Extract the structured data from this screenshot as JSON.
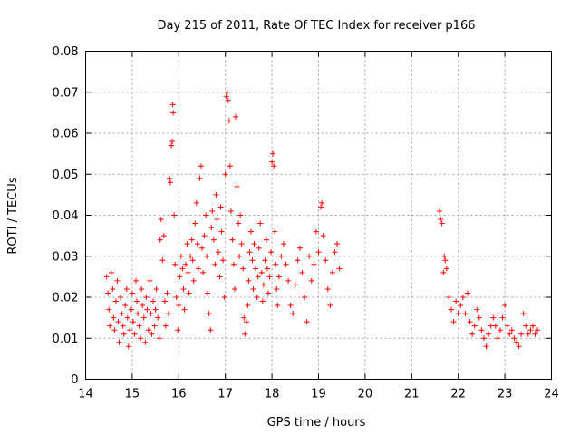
{
  "chart_data": {
    "type": "scatter",
    "title": "Day 215 of 2011, Rate Of TEC Index for receiver p166",
    "xlabel": "GPS time / hours",
    "ylabel": "ROTI / TECUs",
    "xlim": [
      14,
      24
    ],
    "ylim": [
      0,
      0.08
    ],
    "x_ticks": [
      "14",
      "15",
      "16",
      "17",
      "18",
      "19",
      "20",
      "21",
      "22",
      "23",
      "24"
    ],
    "y_ticks": [
      "0",
      "0.01",
      "0.02",
      "0.03",
      "0.04",
      "0.05",
      "0.06",
      "0.07",
      "0.08"
    ],
    "grid": true,
    "marker": "plus",
    "color": "#ff0000",
    "series": [
      {
        "points": [
          [
            14.45,
            0.025
          ],
          [
            14.48,
            0.021
          ],
          [
            14.5,
            0.017
          ],
          [
            14.52,
            0.013
          ],
          [
            14.55,
            0.026
          ],
          [
            14.58,
            0.022
          ],
          [
            14.6,
            0.015
          ],
          [
            14.62,
            0.012
          ],
          [
            14.65,
            0.019
          ],
          [
            14.68,
            0.024
          ],
          [
            14.7,
            0.014
          ],
          [
            14.72,
            0.009
          ],
          [
            14.75,
            0.02
          ],
          [
            14.78,
            0.016
          ],
          [
            14.8,
            0.013
          ],
          [
            14.82,
            0.011
          ],
          [
            14.85,
            0.018
          ],
          [
            14.88,
            0.022
          ],
          [
            14.9,
            0.015
          ],
          [
            14.92,
            0.008
          ],
          [
            14.95,
            0.012
          ],
          [
            14.98,
            0.017
          ],
          [
            15.0,
            0.021
          ],
          [
            15.02,
            0.014
          ],
          [
            15.05,
            0.011
          ],
          [
            15.08,
            0.024
          ],
          [
            15.1,
            0.019
          ],
          [
            15.12,
            0.016
          ],
          [
            15.15,
            0.013
          ],
          [
            15.18,
            0.01
          ],
          [
            15.2,
            0.022
          ],
          [
            15.22,
            0.018
          ],
          [
            15.25,
            0.015
          ],
          [
            15.28,
            0.009
          ],
          [
            15.3,
            0.02
          ],
          [
            15.32,
            0.017
          ],
          [
            15.35,
            0.012
          ],
          [
            15.38,
            0.024
          ],
          [
            15.4,
            0.016
          ],
          [
            15.42,
            0.011
          ],
          [
            15.45,
            0.019
          ],
          [
            15.48,
            0.013
          ],
          [
            15.5,
            0.017
          ],
          [
            15.52,
            0.022
          ],
          [
            15.55,
            0.015
          ],
          [
            15.58,
            0.01
          ],
          [
            15.6,
            0.034
          ],
          [
            15.62,
            0.039
          ],
          [
            15.65,
            0.029
          ],
          [
            15.68,
            0.035
          ],
          [
            15.7,
            0.019
          ],
          [
            15.72,
            0.013
          ],
          [
            15.75,
            0.021
          ],
          [
            15.78,
            0.016
          ],
          [
            15.8,
            0.049
          ],
          [
            15.82,
            0.048
          ],
          [
            15.84,
            0.057
          ],
          [
            15.86,
            0.058
          ],
          [
            15.87,
            0.067
          ],
          [
            15.88,
            0.065
          ],
          [
            15.9,
            0.04
          ],
          [
            15.92,
            0.028
          ],
          [
            15.95,
            0.02
          ],
          [
            15.98,
            0.012
          ],
          [
            16.0,
            0.018
          ],
          [
            16.02,
            0.025
          ],
          [
            16.05,
            0.03
          ],
          [
            16.08,
            0.027
          ],
          [
            16.1,
            0.022
          ],
          [
            16.12,
            0.017
          ],
          [
            16.15,
            0.028
          ],
          [
            16.18,
            0.033
          ],
          [
            16.2,
            0.026
          ],
          [
            16.22,
            0.021
          ],
          [
            16.25,
            0.03
          ],
          [
            16.28,
            0.034
          ],
          [
            16.3,
            0.029
          ],
          [
            16.32,
            0.024
          ],
          [
            16.35,
            0.038
          ],
          [
            16.38,
            0.043
          ],
          [
            16.4,
            0.033
          ],
          [
            16.42,
            0.027
          ],
          [
            16.45,
            0.049
          ],
          [
            16.48,
            0.052
          ],
          [
            16.5,
            0.032
          ],
          [
            16.52,
            0.026
          ],
          [
            16.55,
            0.035
          ],
          [
            16.58,
            0.04
          ],
          [
            16.6,
            0.03
          ],
          [
            16.62,
            0.021
          ],
          [
            16.65,
            0.016
          ],
          [
            16.68,
            0.012
          ],
          [
            16.7,
            0.037
          ],
          [
            16.72,
            0.041
          ],
          [
            16.75,
            0.034
          ],
          [
            16.78,
            0.028
          ],
          [
            16.8,
            0.045
          ],
          [
            16.82,
            0.039
          ],
          [
            16.85,
            0.031
          ],
          [
            16.88,
            0.025
          ],
          [
            16.9,
            0.042
          ],
          [
            16.92,
            0.036
          ],
          [
            16.95,
            0.029
          ],
          [
            16.98,
            0.02
          ],
          [
            17.0,
            0.05
          ],
          [
            17.02,
            0.069
          ],
          [
            17.04,
            0.07
          ],
          [
            17.06,
            0.068
          ],
          [
            17.08,
            0.063
          ],
          [
            17.1,
            0.052
          ],
          [
            17.12,
            0.041
          ],
          [
            17.15,
            0.034
          ],
          [
            17.18,
            0.028
          ],
          [
            17.2,
            0.022
          ],
          [
            17.22,
            0.064
          ],
          [
            17.25,
            0.047
          ],
          [
            17.28,
            0.038
          ],
          [
            17.3,
            0.03
          ],
          [
            17.32,
            0.04
          ],
          [
            17.35,
            0.033
          ],
          [
            17.38,
            0.027
          ],
          [
            17.4,
            0.015
          ],
          [
            17.42,
            0.011
          ],
          [
            17.45,
            0.014
          ],
          [
            17.48,
            0.018
          ],
          [
            17.5,
            0.024
          ],
          [
            17.52,
            0.031
          ],
          [
            17.55,
            0.036
          ],
          [
            17.58,
            0.029
          ],
          [
            17.6,
            0.022
          ],
          [
            17.62,
            0.033
          ],
          [
            17.65,
            0.027
          ],
          [
            17.68,
            0.02
          ],
          [
            17.7,
            0.025
          ],
          [
            17.72,
            0.032
          ],
          [
            17.75,
            0.038
          ],
          [
            17.78,
            0.026
          ],
          [
            17.8,
            0.019
          ],
          [
            17.82,
            0.023
          ],
          [
            17.85,
            0.029
          ],
          [
            17.88,
            0.034
          ],
          [
            17.9,
            0.027
          ],
          [
            17.92,
            0.021
          ],
          [
            17.95,
            0.025
          ],
          [
            17.98,
            0.031
          ],
          [
            18.0,
            0.053
          ],
          [
            18.02,
            0.055
          ],
          [
            18.04,
            0.052
          ],
          [
            18.06,
            0.036
          ],
          [
            18.08,
            0.028
          ],
          [
            18.1,
            0.022
          ],
          [
            18.12,
            0.018
          ],
          [
            18.15,
            0.025
          ],
          [
            18.2,
            0.03
          ],
          [
            18.25,
            0.033
          ],
          [
            18.3,
            0.028
          ],
          [
            18.35,
            0.024
          ],
          [
            18.4,
            0.018
          ],
          [
            18.45,
            0.016
          ],
          [
            18.5,
            0.023
          ],
          [
            18.55,
            0.029
          ],
          [
            18.6,
            0.032
          ],
          [
            18.65,
            0.026
          ],
          [
            18.7,
            0.02
          ],
          [
            18.75,
            0.014
          ],
          [
            18.8,
            0.03
          ],
          [
            18.85,
            0.024
          ],
          [
            18.9,
            0.028
          ],
          [
            18.95,
            0.036
          ],
          [
            19.0,
            0.031
          ],
          [
            19.05,
            0.042
          ],
          [
            19.07,
            0.043
          ],
          [
            19.1,
            0.035
          ],
          [
            19.15,
            0.029
          ],
          [
            19.2,
            0.022
          ],
          [
            19.25,
            0.018
          ],
          [
            19.3,
            0.026
          ],
          [
            19.35,
            0.031
          ],
          [
            19.4,
            0.033
          ],
          [
            19.45,
            0.027
          ],
          [
            21.6,
            0.041
          ],
          [
            21.62,
            0.039
          ],
          [
            21.65,
            0.038
          ],
          [
            21.68,
            0.026
          ],
          [
            21.7,
            0.03
          ],
          [
            21.72,
            0.029
          ],
          [
            21.75,
            0.027
          ],
          [
            21.8,
            0.02
          ],
          [
            21.85,
            0.017
          ],
          [
            21.9,
            0.014
          ],
          [
            21.95,
            0.019
          ],
          [
            22.0,
            0.016
          ],
          [
            22.05,
            0.018
          ],
          [
            22.1,
            0.02
          ],
          [
            22.15,
            0.016
          ],
          [
            22.2,
            0.021
          ],
          [
            22.25,
            0.014
          ],
          [
            22.3,
            0.011
          ],
          [
            22.35,
            0.013
          ],
          [
            22.4,
            0.017
          ],
          [
            22.45,
            0.015
          ],
          [
            22.5,
            0.012
          ],
          [
            22.55,
            0.01
          ],
          [
            22.6,
            0.008
          ],
          [
            22.65,
            0.011
          ],
          [
            22.7,
            0.013
          ],
          [
            22.75,
            0.015
          ],
          [
            22.8,
            0.013
          ],
          [
            22.85,
            0.01
          ],
          [
            22.9,
            0.012
          ],
          [
            22.95,
            0.015
          ],
          [
            23.0,
            0.018
          ],
          [
            23.05,
            0.013
          ],
          [
            23.1,
            0.011
          ],
          [
            23.15,
            0.012
          ],
          [
            23.2,
            0.01
          ],
          [
            23.25,
            0.009
          ],
          [
            23.3,
            0.008
          ],
          [
            23.35,
            0.011
          ],
          [
            23.4,
            0.016
          ],
          [
            23.45,
            0.013
          ],
          [
            23.5,
            0.011
          ],
          [
            23.55,
            0.012
          ],
          [
            23.6,
            0.013
          ],
          [
            23.65,
            0.011
          ],
          [
            23.7,
            0.012
          ]
        ]
      }
    ]
  }
}
